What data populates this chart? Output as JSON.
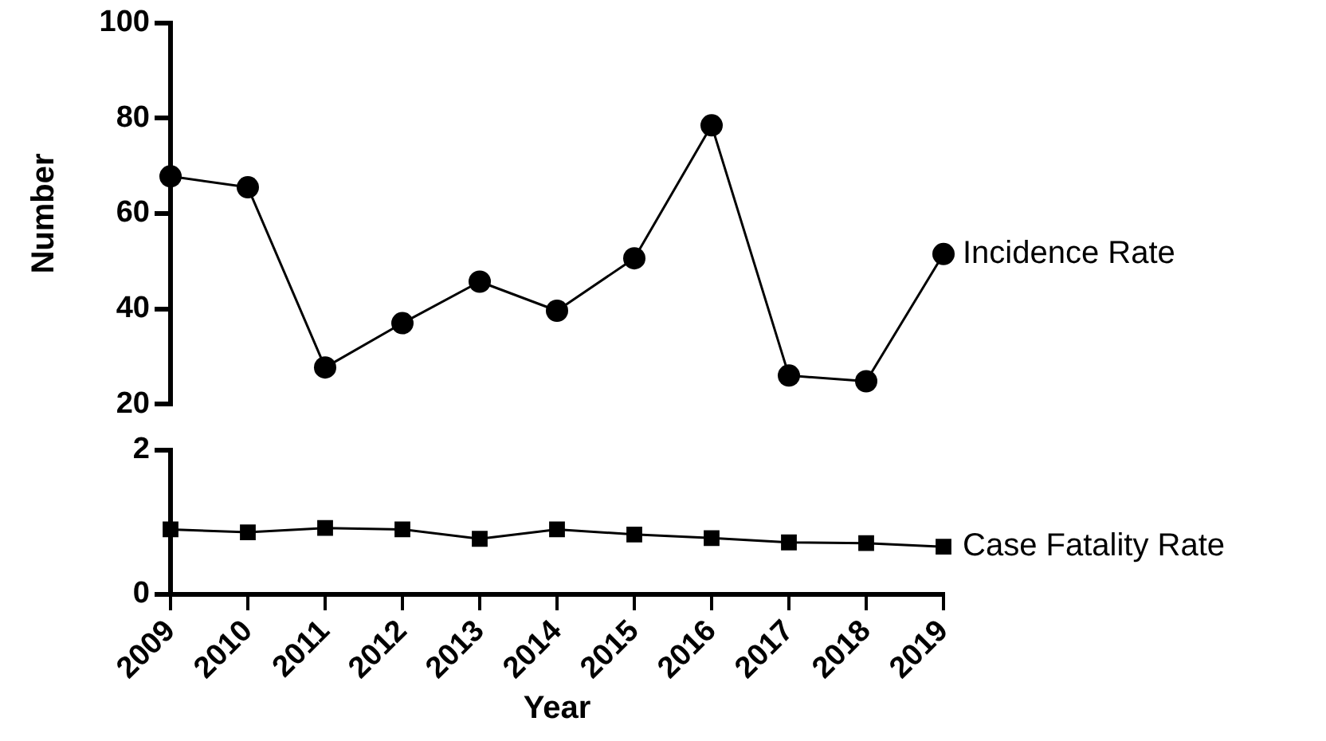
{
  "chart_data": [
    {
      "type": "line",
      "ylabel": "Number",
      "categories": [
        "2009",
        "2010",
        "2011",
        "2012",
        "2013",
        "2014",
        "2015",
        "2016",
        "2017",
        "2018",
        "2019"
      ],
      "tick_labels": "y",
      "marker": "circle",
      "ylim": [
        20,
        100
      ],
      "yticks": [
        20,
        40,
        60,
        80,
        100
      ],
      "series": [
        {
          "name": "Incidence Rate",
          "color": "#000000",
          "values": [
            67.8,
            65.5,
            27.7,
            37,
            45.7,
            39.6,
            50.6,
            78.5,
            26,
            24.8,
            51.5
          ]
        }
      ]
    },
    {
      "type": "line",
      "xlabel": "Year",
      "categories": [
        "2009",
        "2010",
        "2011",
        "2012",
        "2013",
        "2014",
        "2015",
        "2016",
        "2017",
        "2018",
        "2019"
      ],
      "marker": "square",
      "ylim": [
        0,
        2
      ],
      "yticks": [
        0,
        2
      ],
      "series": [
        {
          "name": "Case Fatality Rate",
          "color": "#000000",
          "values": [
            0.9,
            0.86,
            0.92,
            0.9,
            0.77,
            0.9,
            0.83,
            0.78,
            0.72,
            0.71,
            0.66
          ]
        }
      ]
    }
  ]
}
